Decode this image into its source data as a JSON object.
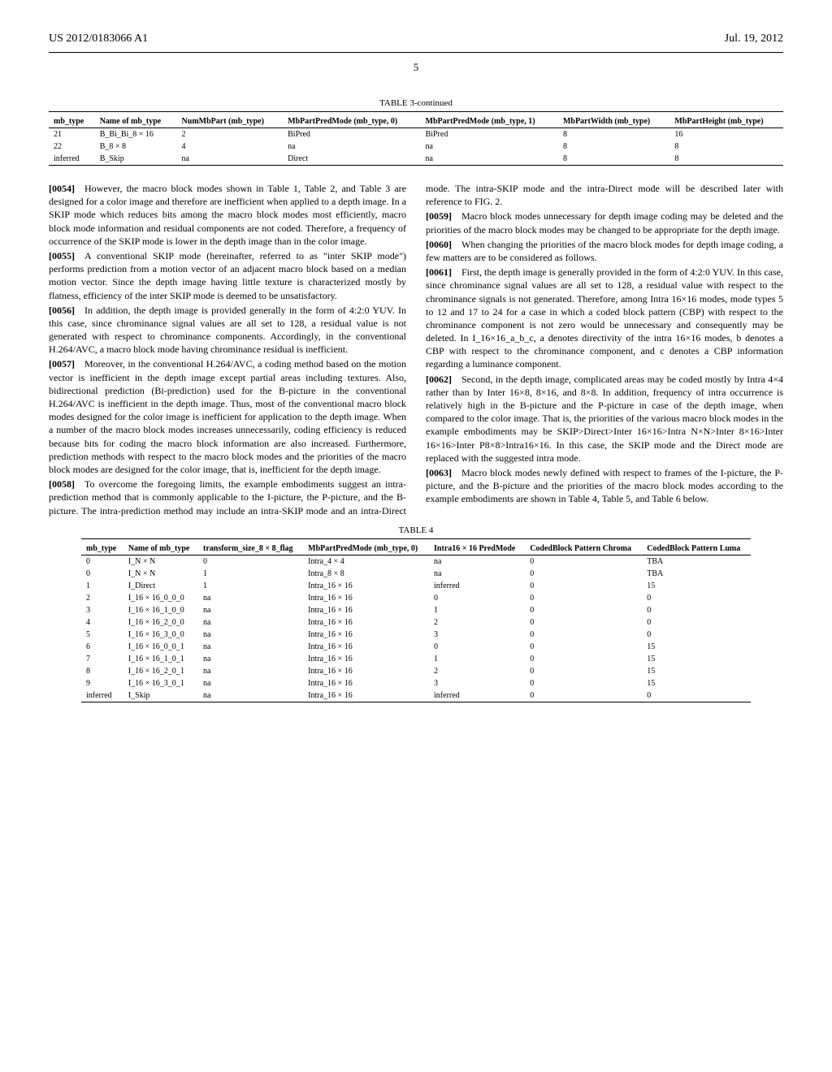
{
  "header": {
    "left": "US 2012/0183066 A1",
    "right": "Jul. 19, 2012"
  },
  "page_number": "5",
  "table3": {
    "caption": "TABLE 3-continued",
    "headers": [
      "mb_type",
      "Name of mb_type",
      "NumMbPart (mb_type)",
      "MbPartPredMode (mb_type, 0)",
      "MbPartPredMode (mb_type, 1)",
      "MbPartWidth (mb_type)",
      "MbPartHeight (mb_type)"
    ],
    "rows": [
      [
        "21",
        "B_Bi_Bi_8 × 16",
        "2",
        "BiPred",
        "BiPred",
        "8",
        "16"
      ],
      [
        "22",
        "B_8 × 8",
        "4",
        "na",
        "na",
        "8",
        "8"
      ],
      [
        "inferred",
        "B_Skip",
        "na",
        "Direct",
        "na",
        "8",
        "8"
      ]
    ]
  },
  "paragraphs": [
    {
      "num": "[0054]",
      "text": "However, the macro block modes shown in Table 1, Table 2, and Table 3 are designed for a color image and therefore are inefficient when applied to a depth image. In a SKIP mode which reduces bits among the macro block modes most efficiently, macro block mode information and residual components are not coded. Therefore, a frequency of occurrence of the SKIP mode is lower in the depth image than in the color image."
    },
    {
      "num": "[0055]",
      "text": "A conventional SKIP mode (hereinafter, referred to as \"inter SKIP mode\") performs prediction from a motion vector of an adjacent macro block based on a median motion vector. Since the depth image having little texture is characterized mostly by flatness, efficiency of the inter SKIP mode is deemed to be unsatisfactory."
    },
    {
      "num": "[0056]",
      "text": "In addition, the depth image is provided generally in the form of 4:2:0 YUV. In this case, since chrominance signal values are all set to 128, a residual value is not generated with respect to chrominance components. Accordingly, in the conventional H.264/AVC, a macro block mode having chrominance residual is inefficient."
    },
    {
      "num": "[0057]",
      "text": "Moreover, in the conventional H.264/AVC, a coding method based on the motion vector is inefficient in the depth image except partial areas including textures. Also, bidirectional prediction (Bi-prediction) used for the B-picture in the conventional H.264/AVC is inefficient in the depth image. Thus, most of the conventional macro block modes designed for the color image is inefficient for application to the depth image. When a number of the macro block modes increases unnecessarily, coding efficiency is reduced because bits for coding the macro block information are also increased. Furthermore, prediction methods with respect to the macro block modes and the priorities of the macro block modes are designed for the color image, that is, inefficient for the depth image."
    },
    {
      "num": "[0058]",
      "text": "To overcome the foregoing limits, the example embodiments suggest an intra-prediction method that is commonly applicable to the I-picture, the P-picture, and the B-picture. The intra-prediction method may include an intra-SKIP mode and an intra-Direct mode. The intra-SKIP mode and the intra-Direct mode will be described later with reference to FIG. 2."
    },
    {
      "num": "[0059]",
      "text": "Macro block modes unnecessary for depth image coding may be deleted and the priorities of the macro block modes may be changed to be appropriate for the depth image."
    },
    {
      "num": "[0060]",
      "text": "When changing the priorities of the macro block modes for depth image coding, a few matters are to be considered as follows."
    },
    {
      "num": "[0061]",
      "text": "First, the depth image is generally provided in the form of 4:2:0 YUV. In this case, since chrominance signal values are all set to 128, a residual value with respect to the chrominance signals is not generated. Therefore, among Intra 16×16 modes, mode types 5 to 12 and 17 to 24 for a case in which a coded block pattern (CBP) with respect to the chrominance component is not zero would be unnecessary and consequently may be deleted. In I_16×16_a_b_c, a denotes directivity of the intra 16×16 modes, b denotes a CBP with respect to the chrominance component, and c denotes a CBP information regarding a luminance component."
    },
    {
      "num": "[0062]",
      "text": "Second, in the depth image, complicated areas may be coded mostly by Intra 4×4 rather than by Inter 16×8, 8×16, and 8×8. In addition, frequency of intra occurrence is relatively high in the B-picture and the P-picture in case of the depth image, when compared to the color image. That is, the priorities of the various macro block modes in the example embodiments may be SKIP>Direct>Inter 16×16>Intra N×N>Inter 8×16>Inter 16×16>Inter P8×8>Intra16×16. In this case, the SKIP mode and the Direct mode are replaced with the suggested intra mode."
    },
    {
      "num": "[0063]",
      "text": "Macro block modes newly defined with respect to frames of the I-picture, the P-picture, and the B-picture and the priorities of the macro block modes according to the example embodiments are shown in Table 4, Table 5, and Table 6 below."
    }
  ],
  "table4": {
    "caption": "TABLE 4",
    "headers": [
      "mb_type",
      "Name of mb_type",
      "transform_size_8 × 8_flag",
      "MbPartPredMode (mb_type, 0)",
      "Intra16 × 16 PredMode",
      "CodedBlock Pattern Chroma",
      "CodedBlock Pattern Luma"
    ],
    "rows": [
      [
        "0",
        "I_N × N",
        "0",
        "Intra_4 × 4",
        "na",
        "0",
        "TBA"
      ],
      [
        "0",
        "I_N × N",
        "1",
        "Intra_8 × 8",
        "na",
        "0",
        "TBA"
      ],
      [
        "1",
        "I_Direct",
        "1",
        "Intra_16 × 16",
        "inferred",
        "0",
        "15"
      ],
      [
        "2",
        "I_16 × 16_0_0_0",
        "na",
        "Intra_16 × 16",
        "0",
        "0",
        "0"
      ],
      [
        "3",
        "I_16 × 16_1_0_0",
        "na",
        "Intra_16 × 16",
        "1",
        "0",
        "0"
      ],
      [
        "4",
        "I_16 × 16_2_0_0",
        "na",
        "Intra_16 × 16",
        "2",
        "0",
        "0"
      ],
      [
        "5",
        "I_16 × 16_3_0_0",
        "na",
        "Intra_16 × 16",
        "3",
        "0",
        "0"
      ],
      [
        "6",
        "I_16 × 16_0_0_1",
        "na",
        "Intra_16 × 16",
        "0",
        "0",
        "15"
      ],
      [
        "7",
        "I_16 × 16_1_0_1",
        "na",
        "Intra_16 × 16",
        "1",
        "0",
        "15"
      ],
      [
        "8",
        "I_16 × 16_2_0_1",
        "na",
        "Intra_16 × 16",
        "2",
        "0",
        "15"
      ],
      [
        "9",
        "I_16 × 16_3_0_1",
        "na",
        "Intra_16 × 16",
        "3",
        "0",
        "15"
      ],
      [
        "inferred",
        "I_Skip",
        "na",
        "Intra_16 × 16",
        "inferred",
        "0",
        "0"
      ]
    ]
  }
}
